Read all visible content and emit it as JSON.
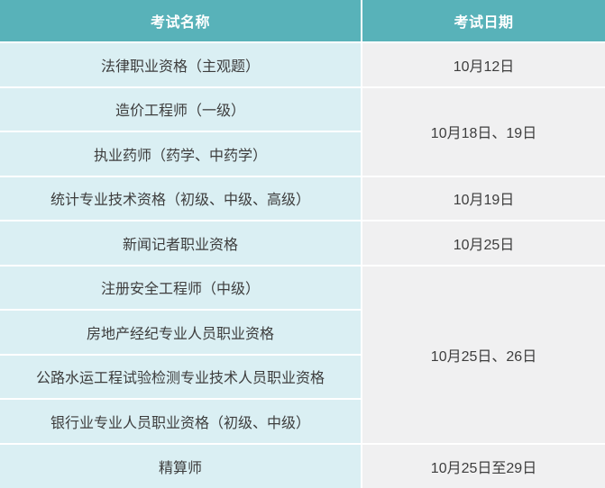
{
  "colors": {
    "header_bg": "#58b2b9",
    "header_text": "#ffffff",
    "name_cell_bg": "#daeff3",
    "date_cell_bg": "#f0f0f1",
    "body_text": "#3d3d3d",
    "separator": "#ffffff"
  },
  "table": {
    "headers": [
      "考试名称",
      "考试日期"
    ],
    "rows": [
      {
        "name": "法律职业资格（主观题）",
        "date": "10月12日"
      },
      {
        "name": "造价工程师（一级）",
        "date": "10月18日、19日"
      },
      {
        "name": "执业药师（药学、中药学）"
      },
      {
        "name": "统计专业技术资格（初级、中级、高级）",
        "date": "10月19日"
      },
      {
        "name": "新闻记者职业资格",
        "date": "10月25日"
      },
      {
        "name": "注册安全工程师（中级）",
        "date": "10月25日、26日"
      },
      {
        "name": "房地产经纪专业人员职业资格"
      },
      {
        "name": "公路水运工程试验检测专业技术人员职业资格"
      },
      {
        "name": "银行业专业人员职业资格（初级、中级）"
      },
      {
        "name": "精算师",
        "date": "10月25日至29日"
      }
    ]
  },
  "chart_data": {
    "type": "table",
    "title": "",
    "columns": [
      "考试名称",
      "考试日期"
    ],
    "rows": [
      [
        "法律职业资格（主观题）",
        "10月12日"
      ],
      [
        "造价工程师（一级）",
        "10月18日、19日"
      ],
      [
        "执业药师（药学、中药学）",
        "10月18日、19日"
      ],
      [
        "统计专业技术资格（初级、中级、高级）",
        "10月19日"
      ],
      [
        "新闻记者职业资格",
        "10月25日"
      ],
      [
        "注册安全工程师（中级）",
        "10月25日、26日"
      ],
      [
        "房地产经纪专业人员职业资格",
        "10月25日、26日"
      ],
      [
        "公路水运工程试验检测专业技术人员职业资格",
        "10月25日、26日"
      ],
      [
        "银行业专业人员职业资格（初级、中级）",
        "10月25日、26日"
      ],
      [
        "精算师",
        "10月25日至29日"
      ]
    ],
    "merged_date_cells": [
      {
        "date": "10月18日、19日",
        "row_start": 1,
        "row_span": 2
      },
      {
        "date": "10月25日、26日",
        "row_start": 5,
        "row_span": 4
      }
    ],
    "layout": {
      "header_style": "teal-bar",
      "cell_separator": "white 2px",
      "text_align": "center"
    }
  }
}
